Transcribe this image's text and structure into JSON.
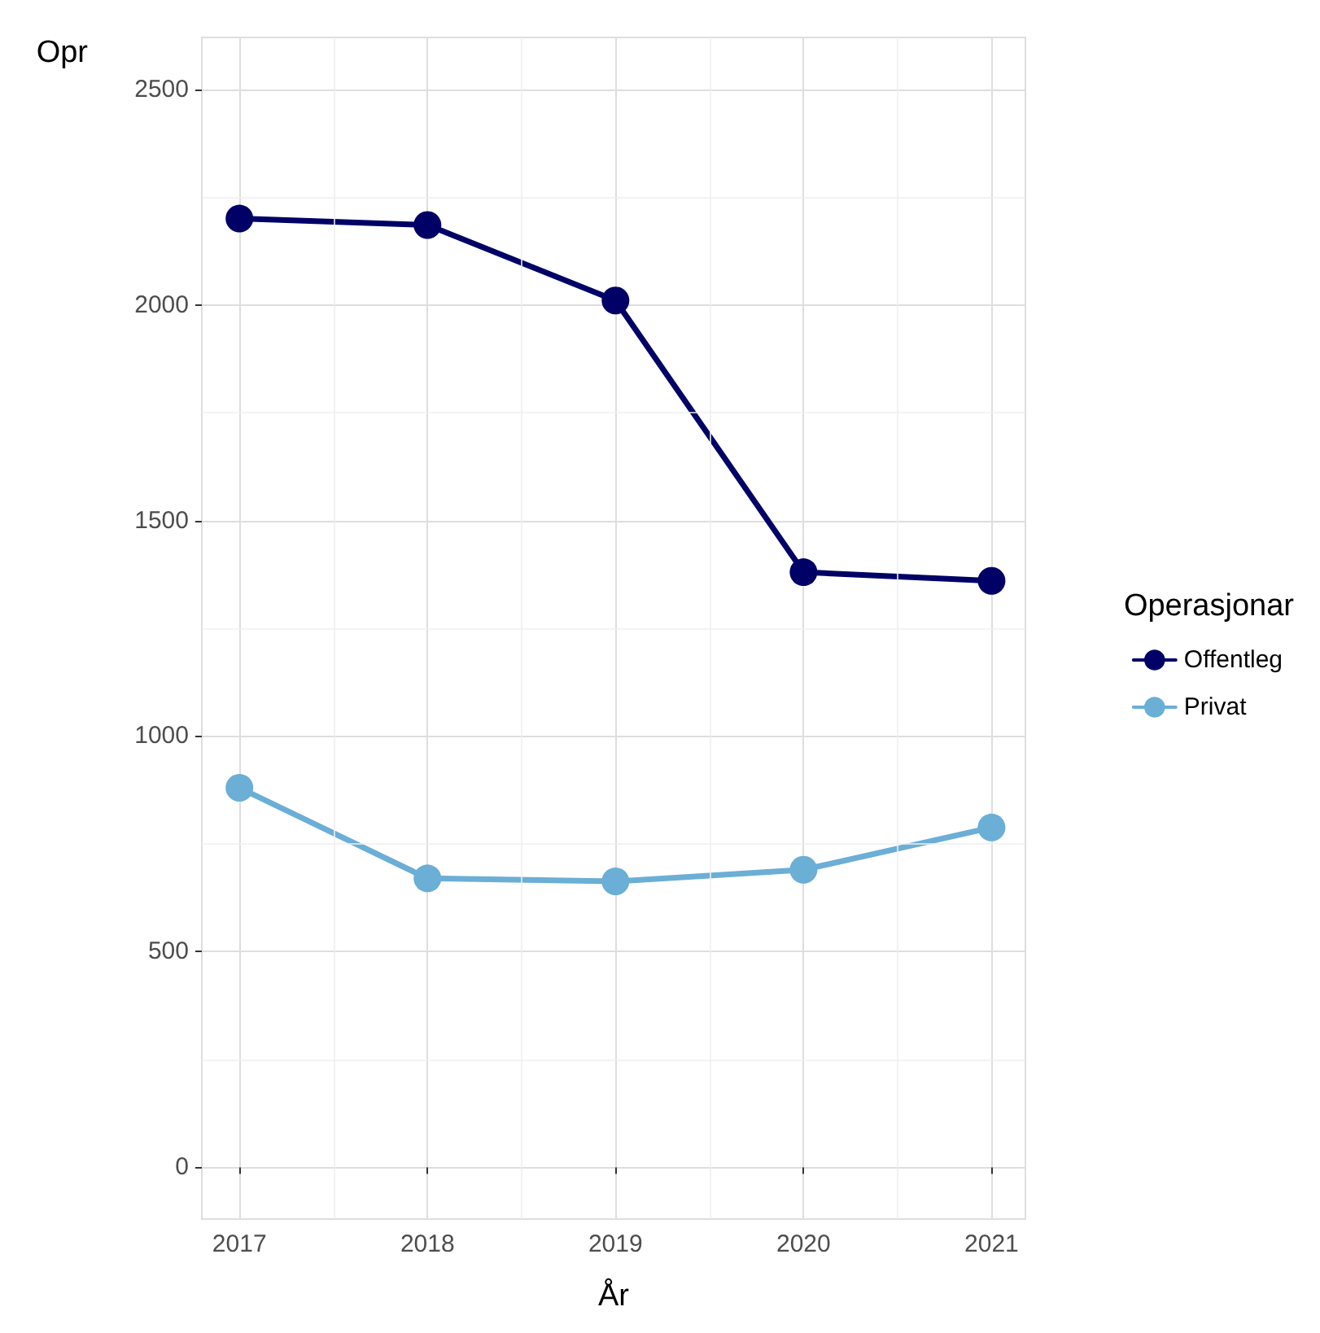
{
  "chart_data": {
    "type": "line",
    "xlabel": "År",
    "ylabel": "Opr",
    "legend_title": "Operasjonar",
    "x": [
      2017,
      2018,
      2019,
      2020,
      2021
    ],
    "series": [
      {
        "name": "Offentleg",
        "color": "#000066",
        "values": [
          2200,
          2185,
          2010,
          1380,
          1360
        ]
      },
      {
        "name": "Privat",
        "color": "#6baed6",
        "values": [
          880,
          670,
          663,
          690,
          788
        ]
      }
    ],
    "xlim": [
      2016.8,
      2021.18
    ],
    "xticks": [
      2017,
      2018,
      2019,
      2020,
      2021
    ],
    "ylim": [
      -120,
      2620
    ],
    "yticks": [
      0,
      500,
      1000,
      1500,
      2000,
      2500
    ],
    "grid": true,
    "legend": "right",
    "marker": "circle",
    "line_style": "solid"
  }
}
